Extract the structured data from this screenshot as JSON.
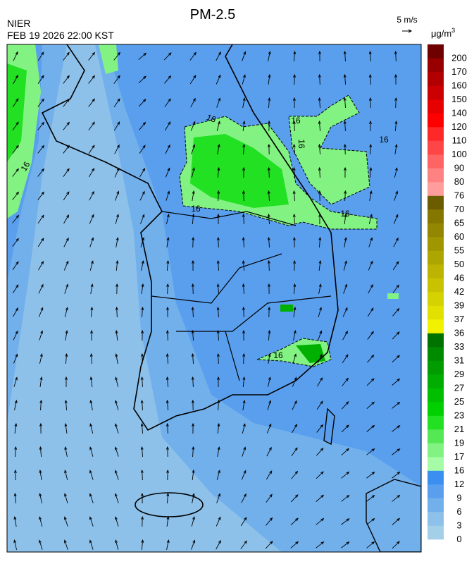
{
  "header": {
    "title": "PM-2.5",
    "source": "NIER",
    "datetime": "FEB 19 2026 22:00 KST",
    "wind_scale": "5 m/s"
  },
  "colorbar": {
    "unit": {
      "base": "μg/m",
      "sup": "3"
    },
    "levels": [
      0,
      3,
      6,
      9,
      12,
      16,
      17,
      19,
      21,
      23,
      25,
      27,
      29,
      31,
      33,
      36,
      37,
      39,
      42,
      46,
      50,
      55,
      60,
      65,
      70,
      76,
      80,
      90,
      100,
      110,
      120,
      140,
      150,
      160,
      170,
      200
    ],
    "colors": [
      "#a3cfe8",
      "#8dc1ea",
      "#72b0ec",
      "#5a9fee",
      "#3b8ff1",
      "#a6fca6",
      "#82f282",
      "#55e855",
      "#22e022",
      "#00d000",
      "#00bf00",
      "#00ad00",
      "#009c00",
      "#008a00",
      "#007200",
      "#f2f200",
      "#e2e000",
      "#d4d200",
      "#c8c200",
      "#bcb400",
      "#aea600",
      "#a09600",
      "#938600",
      "#857600",
      "#6c5c00",
      "#ff9c9c",
      "#ff8282",
      "#ff6464",
      "#ff4646",
      "#ff2828",
      "#ff0000",
      "#e60000",
      "#cc0000",
      "#b20000",
      "#980000",
      "#6e0000"
    ]
  },
  "map": {
    "contour_labels": [
      "16",
      "16",
      "16",
      "16",
      "16",
      "16",
      "16",
      "16"
    ]
  }
}
